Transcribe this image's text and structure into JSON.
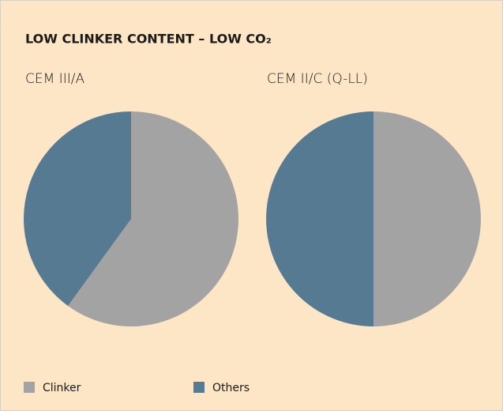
{
  "title": "LOW CLINKER CONTENT – LOW CO₂",
  "chart_data": [
    {
      "type": "pie",
      "title": "CEM III/A",
      "categories": [
        "Clinker",
        "Others"
      ],
      "values": [
        60,
        40
      ],
      "colors": [
        "#a3a3a3",
        "#557a91"
      ]
    },
    {
      "type": "pie",
      "title": "CEM II/C (Q-LL)",
      "categories": [
        "Clinker",
        "Others"
      ],
      "values": [
        50,
        50
      ],
      "colors": [
        "#a3a3a3",
        "#557a91"
      ]
    }
  ]
}
